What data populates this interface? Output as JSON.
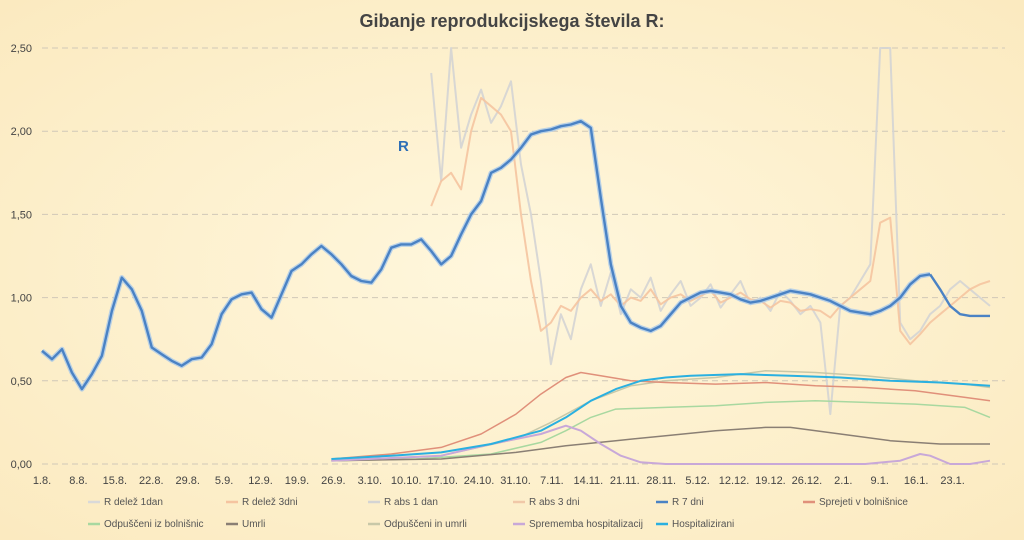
{
  "chart_data": {
    "type": "line",
    "title": "Gibanje reprodukcijskega števila R:",
    "annotation": "R",
    "ylim": [
      0,
      2.5
    ],
    "y_ticks": [
      "0,00",
      "0,50",
      "1,00",
      "1,50",
      "2,00",
      "2,50"
    ],
    "x_labels": [
      "1.8.",
      "8.8.",
      "15.8.",
      "22.8.",
      "29.8.",
      "5.9.",
      "12.9.",
      "19.9.",
      "26.9.",
      "3.10.",
      "10.10.",
      "17.10.",
      "24.10.",
      "31.10.",
      "7.11.",
      "14.11.",
      "21.11.",
      "28.11.",
      "5.12.",
      "12.12.",
      "19.12.",
      "26.12.",
      "2.1.",
      "9.1.",
      "16.1.",
      "23.1."
    ],
    "grid": true,
    "legend_position": "bottom",
    "series": [
      {
        "name": "R delež 1dan",
        "color": "#d9d9d9"
      },
      {
        "name": "R delež 3dni",
        "color": "#f5c4a0"
      },
      {
        "name": "R abs 1 dan",
        "color": "#d4d4d4"
      },
      {
        "name": "R abs 3 dni",
        "color": "#f0c8a8"
      },
      {
        "name": "R 7 dni",
        "color": "#4a82c4"
      },
      {
        "name": "Sprejeti v bolnišnice",
        "color": "#e0907a"
      },
      {
        "name": "Odpuščeni iz bolnišnic",
        "color": "#a8d8a0"
      },
      {
        "name": "Umrli",
        "color": "#8a7f74"
      },
      {
        "name": "Odpuščeni in umrli",
        "color": "#c8c8a8"
      },
      {
        "name": "Sprememba hospitalizacij",
        "color": "#c8a8d8"
      },
      {
        "name": "Hospitalizirani",
        "color": "#2ab0e0"
      }
    ],
    "r7": {
      "x": [
        0,
        2,
        4,
        6,
        8,
        10,
        12,
        14,
        16,
        18,
        20,
        22,
        24,
        26,
        28,
        30,
        32,
        34,
        36,
        38,
        40,
        42,
        44,
        46,
        48,
        50,
        52,
        54,
        56,
        58,
        60,
        62,
        64,
        66,
        68,
        70,
        72,
        74,
        76,
        78,
        80,
        82,
        84,
        86,
        88,
        90,
        92,
        94,
        96,
        98,
        100,
        102,
        104,
        106,
        108,
        110,
        112,
        114,
        116,
        118,
        120,
        122,
        124,
        126,
        128,
        130,
        132,
        134,
        136,
        138,
        140,
        142,
        144,
        146,
        148,
        150,
        152,
        154,
        156,
        158,
        160,
        162,
        164,
        166,
        168,
        170,
        172,
        174,
        176,
        178
      ],
      "y": [
        0.68,
        0.63,
        0.69,
        0.55,
        0.45,
        0.54,
        0.65,
        0.92,
        1.12,
        1.05,
        0.92,
        0.7,
        0.66,
        0.62,
        0.59,
        0.63,
        0.64,
        0.72,
        0.9,
        0.99,
        1.02,
        1.03,
        0.93,
        0.88,
        1.02,
        1.16,
        1.2,
        1.26,
        1.31,
        1.26,
        1.2,
        1.13,
        1.1,
        1.09,
        1.17,
        1.3,
        1.32,
        1.32,
        1.35,
        1.28,
        1.2,
        1.25,
        1.38,
        1.5,
        1.58,
        1.75,
        1.78,
        1.83,
        1.9,
        1.98,
        2.0,
        2.01,
        2.03,
        2.04,
        2.06,
        2.02,
        1.6,
        1.2,
        0.95,
        0.85,
        0.82,
        0.8,
        0.83,
        0.9,
        0.97,
        1.0,
        1.03,
        1.04,
        1.03,
        1.02,
        0.99,
        0.97,
        0.98,
        1.0,
        1.02,
        1.04,
        1.03,
        1.02,
        1.0,
        0.98,
        0.95,
        0.92,
        0.91,
        0.9,
        0.92,
        0.95,
        1.0,
        1.08,
        1.13,
        1.14
      ]
    },
    "r7_tail": {
      "x": [
        178,
        180,
        182,
        184,
        186,
        188,
        190
      ],
      "y": [
        1.14,
        1.05,
        0.95,
        0.9,
        0.89,
        0.89,
        0.89
      ]
    },
    "hosp": {
      "x": [
        58,
        70,
        80,
        90,
        100,
        105,
        110,
        115,
        120,
        125,
        130,
        140,
        150,
        160,
        170,
        180,
        190
      ],
      "y": [
        0.03,
        0.05,
        0.07,
        0.12,
        0.2,
        0.28,
        0.38,
        0.45,
        0.5,
        0.52,
        0.53,
        0.54,
        0.53,
        0.52,
        0.5,
        0.49,
        0.47
      ]
    },
    "sprejeti": {
      "x": [
        58,
        70,
        80,
        88,
        95,
        100,
        105,
        108,
        112,
        118,
        125,
        135,
        145,
        155,
        165,
        175,
        185,
        190
      ],
      "y": [
        0.03,
        0.06,
        0.1,
        0.18,
        0.3,
        0.42,
        0.52,
        0.55,
        0.53,
        0.5,
        0.49,
        0.48,
        0.49,
        0.47,
        0.46,
        0.44,
        0.4,
        0.38
      ]
    },
    "odpusceni": {
      "x": [
        58,
        75,
        90,
        100,
        105,
        110,
        115,
        125,
        135,
        145,
        155,
        165,
        175,
        185,
        190
      ],
      "y": [
        0.02,
        0.03,
        0.06,
        0.13,
        0.2,
        0.28,
        0.33,
        0.34,
        0.35,
        0.37,
        0.38,
        0.37,
        0.36,
        0.34,
        0.28
      ]
    },
    "umrli": {
      "x": [
        58,
        80,
        95,
        105,
        115,
        125,
        135,
        145,
        150,
        160,
        170,
        180,
        190
      ],
      "y": [
        0.02,
        0.03,
        0.07,
        0.11,
        0.14,
        0.17,
        0.2,
        0.22,
        0.22,
        0.18,
        0.14,
        0.12,
        0.12
      ]
    },
    "odpusceni_umrli": {
      "x": [
        58,
        80,
        95,
        102,
        110,
        118,
        125,
        135,
        145,
        155,
        165,
        175,
        185,
        190
      ],
      "y": [
        0.02,
        0.05,
        0.15,
        0.25,
        0.38,
        0.47,
        0.5,
        0.52,
        0.56,
        0.55,
        0.53,
        0.5,
        0.48,
        0.46
      ]
    },
    "sprememba": {
      "x": [
        58,
        80,
        90,
        100,
        105,
        108,
        112,
        116,
        120,
        125,
        135,
        145,
        155,
        165,
        172,
        176,
        178,
        182,
        186,
        190
      ],
      "y": [
        0.02,
        0.05,
        0.12,
        0.18,
        0.23,
        0.2,
        0.12,
        0.05,
        0.01,
        0.0,
        0.0,
        0.0,
        0.0,
        0.0,
        0.02,
        0.06,
        0.05,
        0.0,
        0.0,
        0.02
      ]
    },
    "noisy_gray": {
      "x": [
        78,
        80,
        82,
        84,
        86,
        88,
        90,
        92,
        94,
        96,
        98,
        100,
        102,
        104,
        106,
        108,
        110,
        112,
        114,
        116,
        118,
        120,
        122,
        124,
        126,
        128,
        130,
        132,
        134,
        136,
        138,
        140,
        142,
        144,
        146,
        148,
        150,
        152,
        154,
        156,
        158,
        160,
        162,
        164,
        166,
        168,
        170,
        172,
        174,
        176,
        178,
        180,
        182,
        184,
        186,
        188,
        190
      ],
      "y": [
        2.35,
        1.7,
        2.5,
        1.9,
        2.1,
        2.25,
        2.05,
        2.15,
        2.3,
        1.8,
        1.5,
        1.1,
        0.6,
        0.9,
        0.75,
        1.05,
        1.2,
        0.95,
        1.15,
        0.9,
        1.05,
        1.0,
        1.12,
        0.92,
        1.02,
        1.1,
        0.95,
        1.0,
        1.08,
        0.94,
        1.02,
        1.1,
        0.96,
        1.0,
        0.92,
        1.04,
        0.98,
        0.9,
        0.95,
        0.85,
        0.3,
        0.95,
        1.0,
        1.1,
        1.2,
        2.5,
        2.5,
        0.85,
        0.75,
        0.8,
        0.9,
        0.95,
        1.05,
        1.1,
        1.05,
        1.0,
        0.95
      ]
    },
    "noisy_orange": {
      "x": [
        78,
        80,
        82,
        84,
        86,
        88,
        90,
        92,
        94,
        96,
        98,
        100,
        102,
        104,
        106,
        108,
        110,
        112,
        114,
        116,
        118,
        120,
        122,
        124,
        126,
        128,
        130,
        132,
        134,
        136,
        138,
        140,
        142,
        144,
        146,
        148,
        150,
        152,
        154,
        156,
        158,
        160,
        162,
        164,
        166,
        168,
        170,
        172,
        174,
        176,
        178,
        180,
        182,
        184,
        186,
        188,
        190
      ],
      "y": [
        1.55,
        1.7,
        1.75,
        1.65,
        2.0,
        2.2,
        2.15,
        2.1,
        2.0,
        1.5,
        1.1,
        0.8,
        0.85,
        0.95,
        0.92,
        1.0,
        1.05,
        0.98,
        1.02,
        0.95,
        1.0,
        0.98,
        1.05,
        0.96,
        1.0,
        1.02,
        0.98,
        1.01,
        1.04,
        0.97,
        1.0,
        1.03,
        0.99,
        0.98,
        0.94,
        0.98,
        0.97,
        0.92,
        0.93,
        0.92,
        0.88,
        0.95,
        1.0,
        1.05,
        1.1,
        1.45,
        1.48,
        0.8,
        0.72,
        0.78,
        0.85,
        0.9,
        0.95,
        1.0,
        1.05,
        1.08,
        1.1
      ]
    }
  }
}
